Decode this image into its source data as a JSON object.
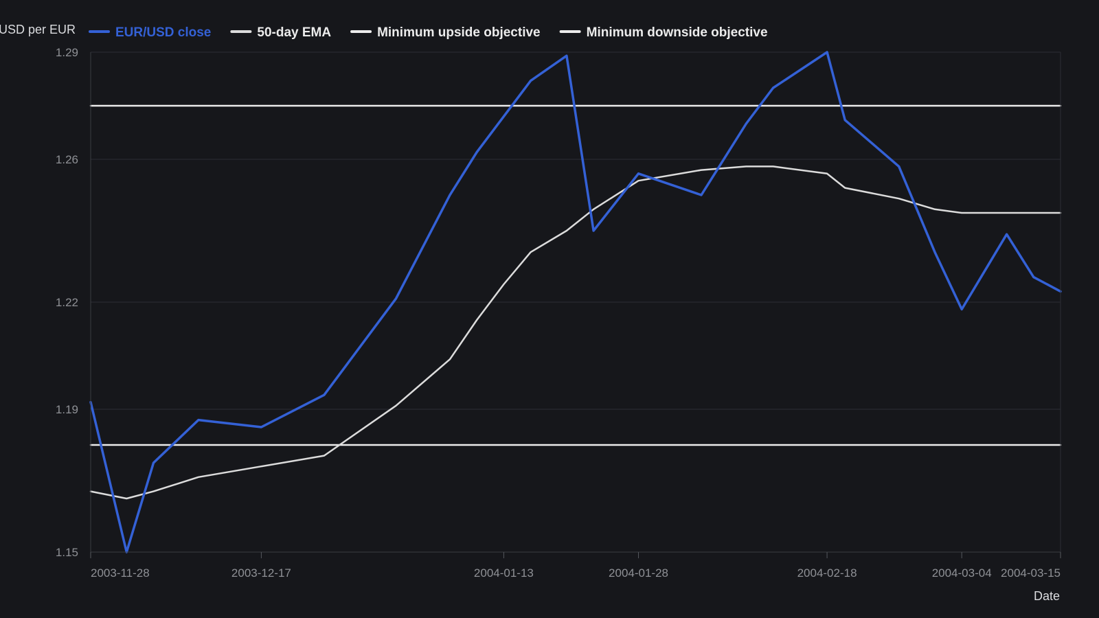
{
  "chart_data": {
    "type": "line",
    "title": "",
    "xlabel": "Date",
    "ylabel": "USD per EUR",
    "ylim": [
      1.15,
      1.29
    ],
    "xlim": [
      "2003-11-28",
      "2004-03-15"
    ],
    "y_ticks": [
      "1.15",
      "1.19",
      "1.22",
      "1.26",
      "1.29"
    ],
    "x_ticks": [
      "2003-11-28",
      "2003-12-17",
      "2004-01-13",
      "2004-01-28",
      "2004-02-18",
      "2004-03-04",
      "2004-03-15"
    ],
    "grid": "horizontal",
    "legend_position": "top",
    "x": [
      "2003-11-28",
      "2003-12-02",
      "2003-12-05",
      "2003-12-10",
      "2003-12-17",
      "2003-12-24",
      "2004-01-01",
      "2004-01-07",
      "2004-01-10",
      "2004-01-13",
      "2004-01-16",
      "2004-01-20",
      "2004-01-23",
      "2004-01-28",
      "2004-02-04",
      "2004-02-09",
      "2004-02-12",
      "2004-02-18",
      "2004-02-20",
      "2004-02-26",
      "2004-03-01",
      "2004-03-04",
      "2004-03-09",
      "2004-03-12",
      "2004-03-15"
    ],
    "series": [
      {
        "name": "EUR/USD close",
        "color": "#3461d6",
        "values": [
          1.192,
          1.15,
          1.175,
          1.187,
          1.185,
          1.194,
          1.221,
          1.25,
          1.262,
          1.272,
          1.282,
          1.289,
          1.24,
          1.256,
          1.25,
          1.27,
          1.28,
          1.29,
          1.271,
          1.258,
          1.234,
          1.218,
          1.239,
          1.227,
          1.223
        ]
      },
      {
        "name": "50-day EMA",
        "color": "#dcdcdc",
        "values": [
          1.167,
          1.165,
          1.167,
          1.171,
          1.174,
          1.177,
          1.191,
          1.204,
          1.215,
          1.225,
          1.234,
          1.24,
          1.246,
          1.254,
          1.257,
          1.258,
          1.258,
          1.256,
          1.252,
          1.249,
          1.246,
          1.245,
          1.245,
          1.245,
          1.245
        ]
      },
      {
        "name": "Minimum upside objective",
        "color": "#ececec",
        "values": [
          1.275,
          1.275,
          1.275,
          1.275,
          1.275,
          1.275,
          1.275,
          1.275,
          1.275,
          1.275,
          1.275,
          1.275,
          1.275,
          1.275,
          1.275,
          1.275,
          1.275,
          1.275,
          1.275,
          1.275,
          1.275,
          1.275,
          1.275,
          1.275,
          1.275
        ]
      },
      {
        "name": "Minimum downside objective",
        "color": "#ececec",
        "values": [
          1.18,
          1.18,
          1.18,
          1.18,
          1.18,
          1.18,
          1.18,
          1.18,
          1.18,
          1.18,
          1.18,
          1.18,
          1.18,
          1.18,
          1.18,
          1.18,
          1.18,
          1.18,
          1.18,
          1.18,
          1.18,
          1.18,
          1.18,
          1.18,
          1.18
        ]
      }
    ]
  }
}
